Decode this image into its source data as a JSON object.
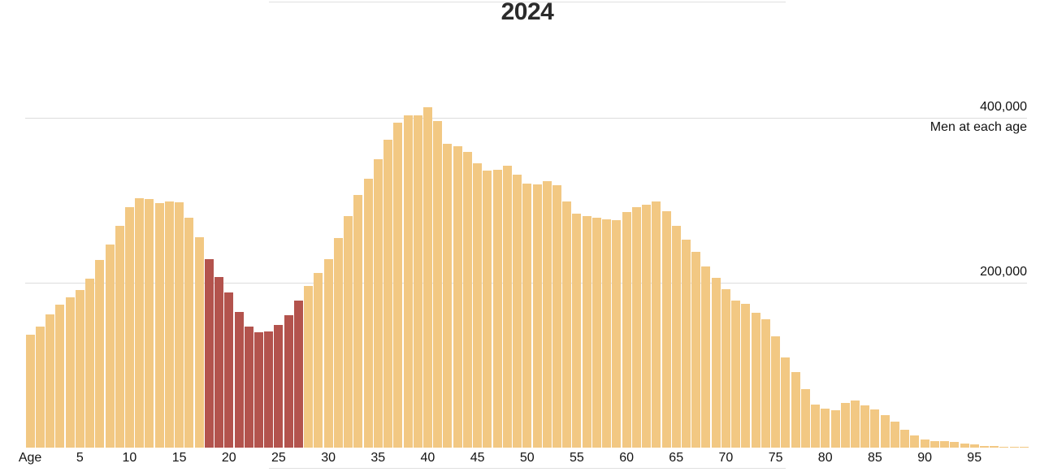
{
  "chart": {
    "title": "2024",
    "y_axis": {
      "labels": [
        {
          "value": 400000,
          "text": "400,000"
        },
        {
          "value": 200000,
          "text": "200,000"
        }
      ],
      "annotation": "Men at each age"
    },
    "x_axis": {
      "label": "Age",
      "ticks": [
        5,
        10,
        15,
        20,
        25,
        30,
        35,
        40,
        45,
        50,
        55,
        60,
        65,
        70,
        75,
        80,
        85,
        90,
        95
      ]
    }
  },
  "chart_data": {
    "type": "bar",
    "title": "2024",
    "xlabel": "Age",
    "ylabel": "Men at each age",
    "age_start": 0,
    "age_end": 100,
    "values": [
      137000,
      147000,
      162000,
      173000,
      182000,
      191000,
      205000,
      228000,
      246000,
      269000,
      292000,
      303000,
      302000,
      297000,
      299000,
      298000,
      279000,
      255000,
      229000,
      207000,
      188000,
      165000,
      147000,
      140000,
      141000,
      149000,
      161000,
      178000,
      196000,
      212000,
      229000,
      254000,
      281000,
      306000,
      326000,
      350000,
      373000,
      394000,
      403000,
      403000,
      413000,
      396000,
      369000,
      366000,
      359000,
      345000,
      336000,
      337000,
      342000,
      331000,
      320000,
      319000,
      323000,
      318000,
      299000,
      284000,
      281000,
      279000,
      277000,
      276000,
      286000,
      292000,
      295000,
      299000,
      287000,
      269000,
      252000,
      237000,
      220000,
      206000,
      192000,
      178000,
      174000,
      164000,
      156000,
      135000,
      109000,
      92000,
      71000,
      52000,
      47000,
      45000,
      54000,
      57000,
      51000,
      46000,
      39000,
      32000,
      22000,
      15000,
      10000,
      8000,
      8000,
      7000,
      5000,
      3500,
      2500,
      2000,
      1500,
      1000,
      800
    ],
    "ylim": [
      0,
      420000
    ],
    "gridlines": [
      200000,
      400000
    ],
    "grid": "horizontal-only",
    "legend": "none",
    "highlight_age_range": [
      18,
      27
    ]
  },
  "colors": {
    "bar": "#f2c883",
    "highlight": "#b3534d",
    "gridline": "#dcdcdc",
    "divider": "#e0e0e0",
    "text": "#121212",
    "title": "#2b2b2b",
    "background": "#ffffff"
  }
}
